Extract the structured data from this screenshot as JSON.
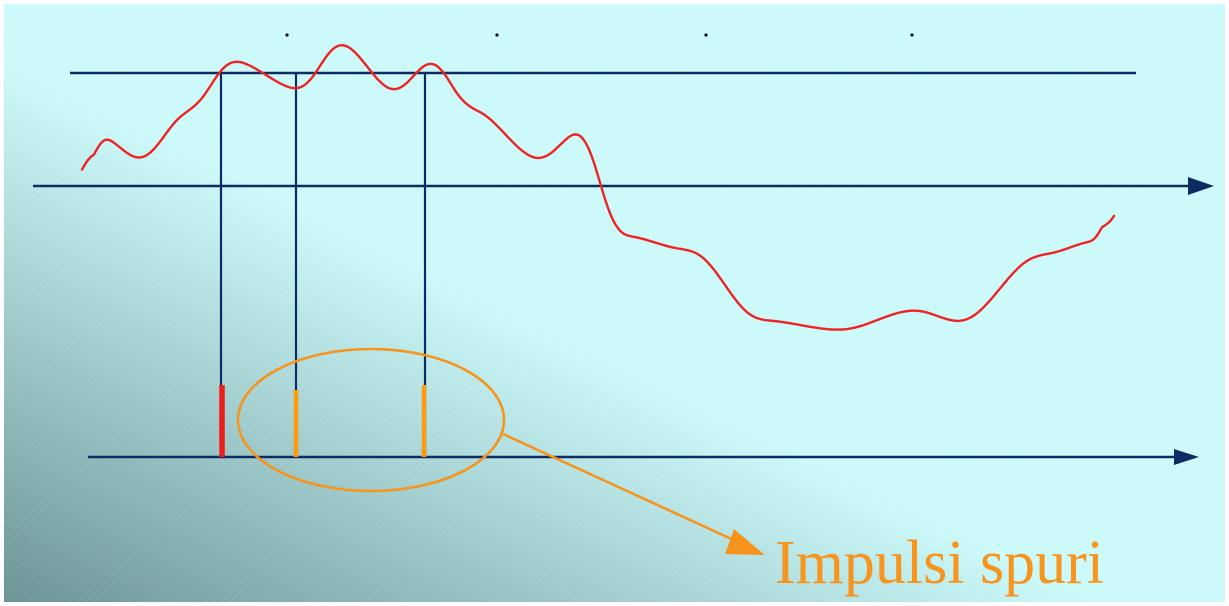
{
  "diagram": {
    "annotation_label": "Impulsi spuri"
  },
  "colors": {
    "background_light": "#ccfafa",
    "background_dark": "#6b9496",
    "axis_color": "#0e2c63",
    "signal_color": "#ee2323",
    "true_pulse_color": "#ee1c1c",
    "spurious_pulse_color": "#ff9a10",
    "annotation_color": "#f7941d"
  }
}
